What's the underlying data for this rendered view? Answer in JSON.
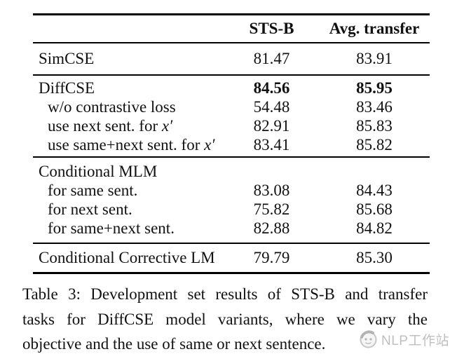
{
  "table": {
    "columns": [
      "",
      "STS-B",
      "Avg. transfer"
    ],
    "sections": [
      {
        "rows": [
          {
            "label": "SimCSE",
            "sts": "81.47",
            "avg": "83.91"
          }
        ]
      },
      {
        "rows": [
          {
            "label": "DiffCSE",
            "sts": "84.56",
            "avg": "85.95",
            "bold": true
          },
          {
            "label": "w/o contrastive loss",
            "sts": "54.48",
            "avg": "83.46",
            "indent": true
          },
          {
            "label": "use next sent. for ",
            "math": "x′",
            "sts": "82.91",
            "avg": "85.83",
            "indent": true
          },
          {
            "label": "use same+next sent. for ",
            "math": "x′",
            "sts": "83.41",
            "avg": "85.82",
            "indent": true
          }
        ]
      },
      {
        "rows": [
          {
            "label": "Conditional MLM",
            "sts": "",
            "avg": ""
          },
          {
            "label": "for same sent.",
            "sts": "83.08",
            "avg": "84.43",
            "indent": true
          },
          {
            "label": "for next sent.",
            "sts": "75.82",
            "avg": "85.68",
            "indent": true
          },
          {
            "label": "for same+next sent.",
            "sts": "82.88",
            "avg": "84.82",
            "indent": true
          }
        ]
      },
      {
        "rows": [
          {
            "label": "Conditional Corrective LM",
            "sts": "79.79",
            "avg": "85.30"
          }
        ]
      }
    ]
  },
  "caption": {
    "lines": [
      "Table 3: Development set results of STS-B and transfer",
      "tasks for DiffCSE model variants, where we vary the",
      "objective and the use of same or next sentence."
    ]
  },
  "watermark": {
    "text": "NLP工作站",
    "icon": "panda-avatar-icon",
    "color": "#b5b5b5"
  },
  "colors": {
    "text": "#111111",
    "rule": "#000000",
    "watermark": "#b5b5b5"
  }
}
